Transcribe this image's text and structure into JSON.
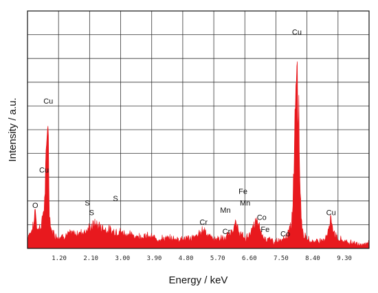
{
  "chart_data": {
    "type": "area",
    "title": "",
    "xlabel": "Energy / keV",
    "ylabel": "Intensity / a.u.",
    "xlim": [
      0.3,
      10.0
    ],
    "ylim": [
      0,
      100
    ],
    "x_ticks": [
      1.2,
      2.1,
      3.0,
      3.9,
      4.8,
      5.7,
      6.6,
      7.5,
      8.4,
      9.3
    ],
    "x_tick_labels": [
      "1.20",
      "2.10",
      "3.00",
      "3.90",
      "4.80",
      "5.70",
      "6.60",
      "7.50",
      "8.40",
      "9.30"
    ],
    "grid": true,
    "fill_color": "#e8191e",
    "series": [
      {
        "x": [
          0.3,
          0.4,
          0.48,
          0.52,
          0.56,
          0.62,
          0.7,
          0.78,
          0.84,
          0.88,
          0.92,
          0.96,
          1.0,
          1.06,
          1.12,
          1.2,
          1.35,
          1.5,
          1.7,
          1.9,
          2.05,
          2.2,
          2.35,
          2.5,
          2.7,
          2.9,
          3.1,
          3.4,
          3.7,
          4.0,
          4.3,
          4.6,
          4.9,
          5.1,
          5.25,
          5.32,
          5.4,
          5.55,
          5.7,
          5.9,
          6.05,
          6.2,
          6.3,
          6.4,
          6.5,
          6.6,
          6.7,
          6.8,
          6.9,
          6.98,
          7.1,
          7.3,
          7.5,
          7.6,
          7.7,
          7.8,
          7.85,
          7.9,
          7.95,
          8.0,
          8.05,
          8.1,
          8.2,
          8.4,
          8.6,
          8.75,
          8.85,
          8.92,
          9.0,
          9.1,
          9.3,
          9.6,
          10.0
        ],
        "y": [
          5,
          7,
          9,
          18,
          9,
          8,
          10,
          18,
          38,
          60,
          16,
          8,
          7,
          6,
          5,
          5,
          5,
          6,
          6,
          7,
          8,
          10,
          9,
          8,
          7,
          7,
          6,
          5,
          5,
          4,
          4,
          4,
          4,
          5,
          7,
          8,
          6,
          4,
          4,
          4,
          6,
          10,
          7,
          5,
          4,
          6,
          8,
          11,
          8,
          5,
          4,
          3,
          3,
          4,
          6,
          10,
          25,
          60,
          88,
          55,
          22,
          8,
          4,
          3,
          3,
          4,
          8,
          12,
          7,
          4,
          3,
          2,
          2
        ]
      }
    ],
    "annotations": [
      {
        "text": "O",
        "x": 0.52,
        "y": 17
      },
      {
        "text": "Cu",
        "x": 0.89,
        "y": 61
      },
      {
        "text": "Cu",
        "x": 0.77,
        "y": 32
      },
      {
        "text": "S",
        "x": 2.0,
        "y": 18
      },
      {
        "text": "S",
        "x": 2.12,
        "y": 14
      },
      {
        "text": "S",
        "x": 2.8,
        "y": 20
      },
      {
        "text": "Cr",
        "x": 5.3,
        "y": 10
      },
      {
        "text": "Mn",
        "x": 5.92,
        "y": 15
      },
      {
        "text": "Cr",
        "x": 5.95,
        "y": 6
      },
      {
        "text": "Fe",
        "x": 6.42,
        "y": 23
      },
      {
        "text": "Mn",
        "x": 6.48,
        "y": 18
      },
      {
        "text": "Co",
        "x": 6.95,
        "y": 12
      },
      {
        "text": "Fe",
        "x": 7.05,
        "y": 7
      },
      {
        "text": "Co",
        "x": 7.62,
        "y": 5
      },
      {
        "text": "Cu",
        "x": 7.95,
        "y": 90
      },
      {
        "text": "Cu",
        "x": 8.92,
        "y": 14
      }
    ]
  }
}
